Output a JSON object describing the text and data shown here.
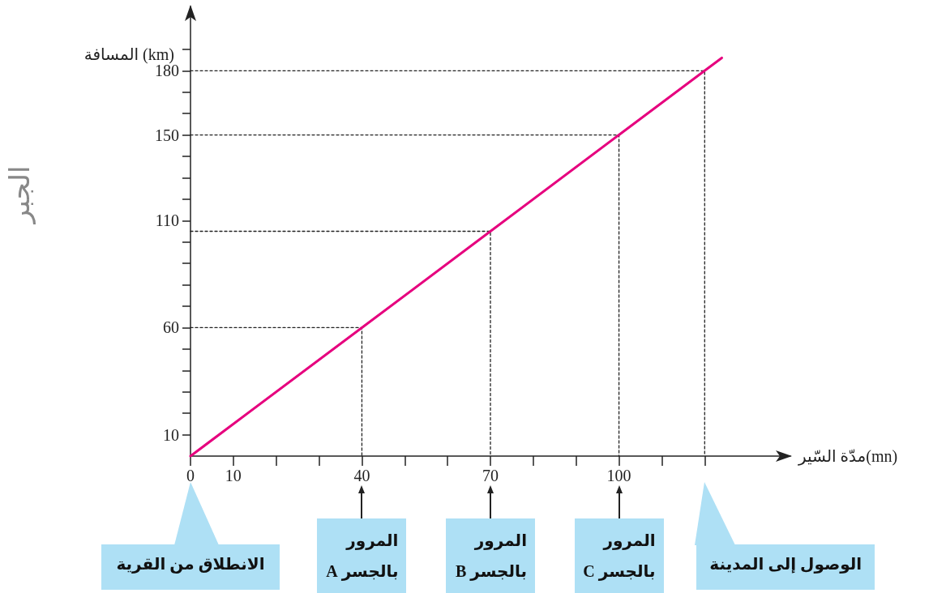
{
  "chart_data": {
    "type": "line",
    "xlabel": "مدّة السّير(mn)",
    "ylabel": "المسافة (km)",
    "x": [
      0,
      40,
      70,
      100,
      120,
      124
    ],
    "series": [
      {
        "color": "#e6007e",
        "values": [
          0,
          60,
          105,
          150,
          180,
          186
        ]
      },
      {
        "color": "#222222",
        "line_style": "dotted",
        "x": [
          0,
          40,
          40
        ],
        "values": [
          60,
          60,
          0
        ]
      },
      {
        "color": "#222222",
        "line_style": "dotted",
        "x": [
          0,
          70,
          70
        ],
        "values": [
          105,
          105,
          0
        ]
      },
      {
        "color": "#222222",
        "line_style": "dotted",
        "x": [
          0,
          100,
          100
        ],
        "values": [
          150,
          150,
          0
        ]
      },
      {
        "color": "#222222",
        "line_style": "dotted",
        "x": [
          0,
          120,
          120
        ],
        "values": [
          180,
          180,
          0
        ]
      }
    ],
    "xlim": [
      0,
      140
    ],
    "ylim": [
      0,
      210
    ],
    "xticks": [
      0,
      10,
      {
        "value": 20,
        "label": null
      },
      {
        "value": 30,
        "label": null
      },
      40,
      {
        "value": 50,
        "label": null
      },
      {
        "value": 60,
        "label": null
      },
      70,
      {
        "value": 80,
        "label": null
      },
      {
        "value": 90,
        "label": null
      },
      100,
      {
        "value": 110,
        "label": null
      },
      {
        "value": 120,
        "label": null
      }
    ],
    "yticks": [
      10,
      {
        "value": 20,
        "label": null
      },
      {
        "value": 30,
        "label": null
      },
      {
        "value": 40,
        "label": null
      },
      {
        "value": 50,
        "label": null
      },
      60,
      {
        "value": 70,
        "label": null
      },
      {
        "value": 80,
        "label": null
      },
      {
        "value": 90,
        "label": null
      },
      {
        "value": 100,
        "label": null
      },
      110,
      {
        "value": 120,
        "label": null
      },
      {
        "value": 130,
        "label": null
      },
      {
        "value": 140,
        "label": null
      },
      150,
      {
        "value": 160,
        "label": null
      },
      {
        "value": 170,
        "label": null
      },
      180,
      {
        "value": 190,
        "label": null
      }
    ],
    "grid": false,
    "marker": "none",
    "line_style": "solid",
    "annotations": [
      "الانطلاق من القرية",
      "المرور\nبالجسر A",
      "المرور\nبالجسر B",
      "المرور\nبالجسر C",
      "الوصول إلى المدينة",
      "الجبر"
    ]
  }
}
